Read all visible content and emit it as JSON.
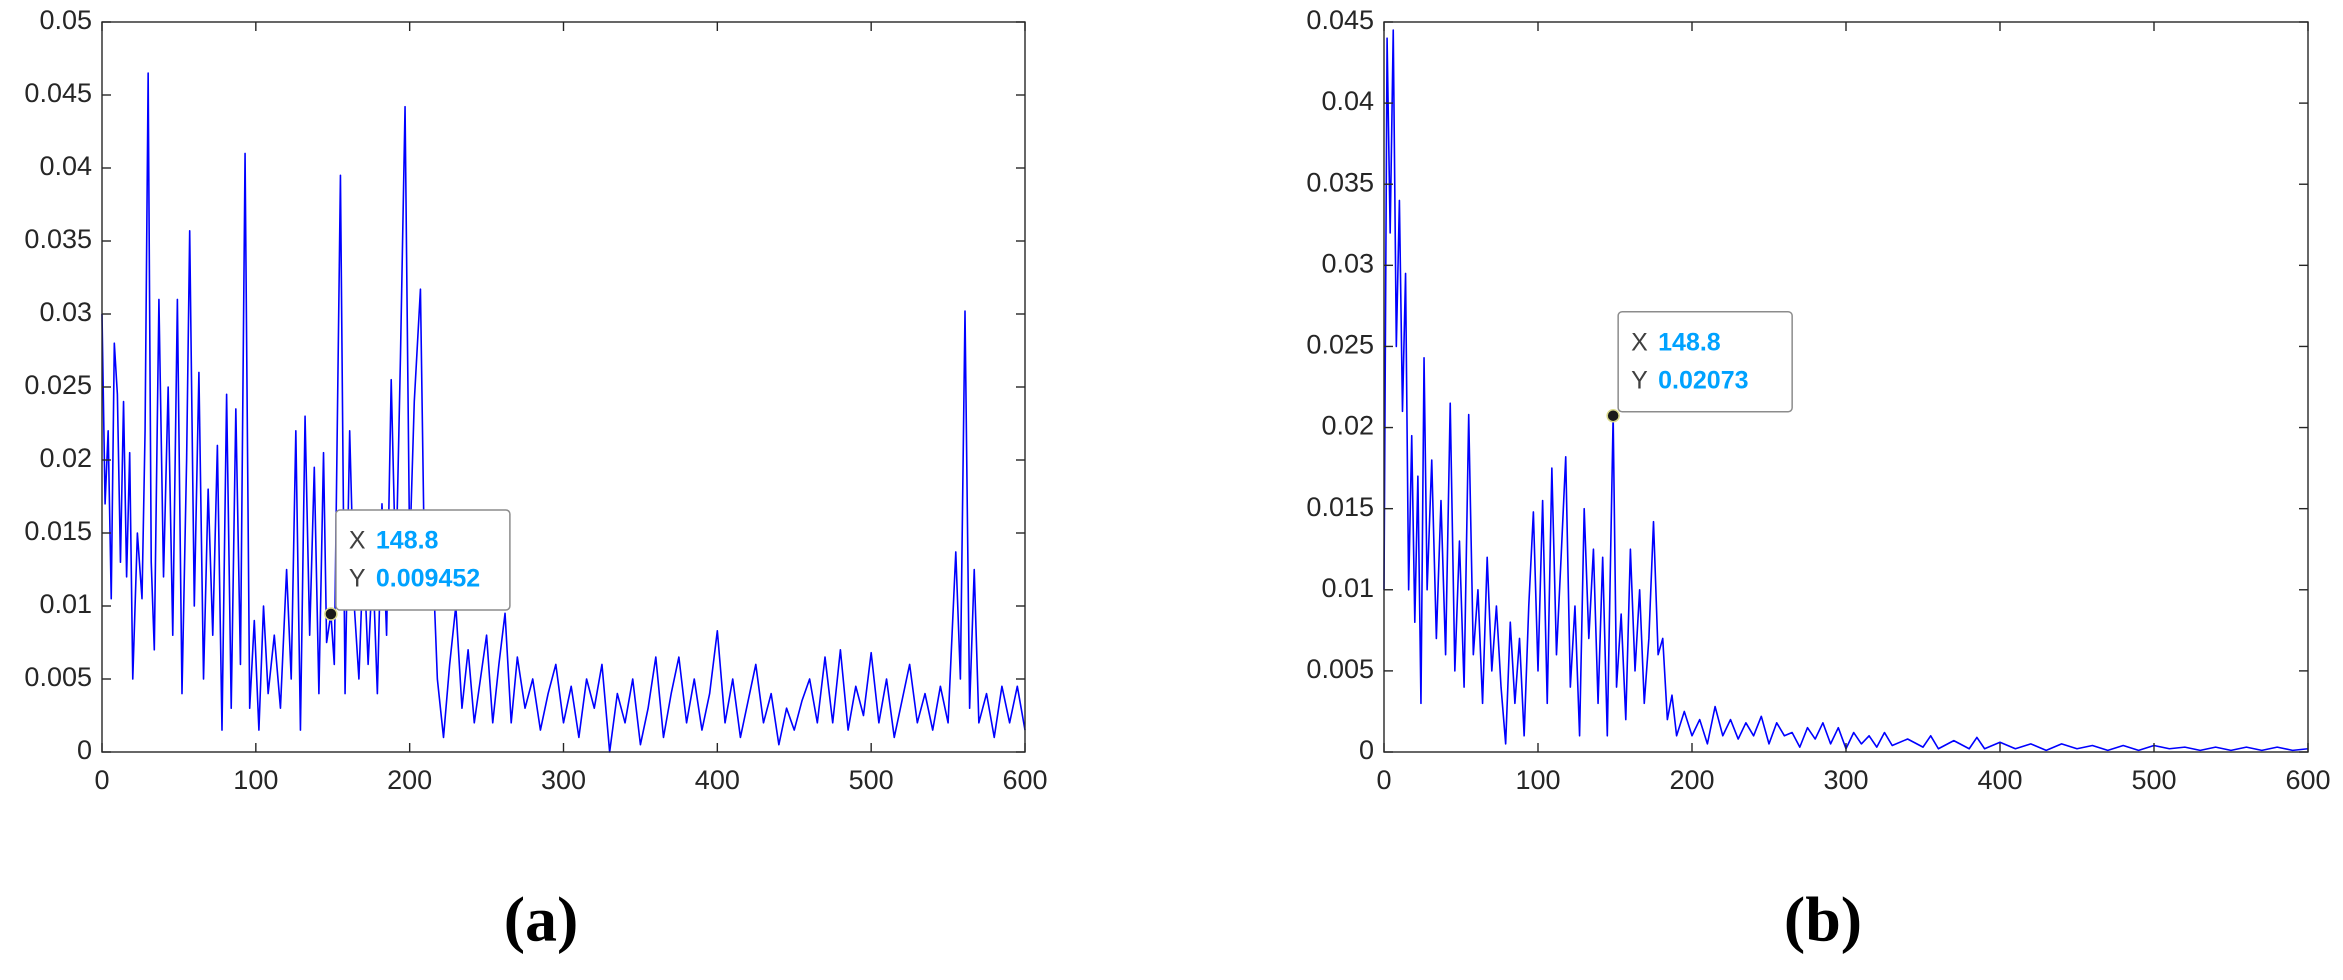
{
  "chart_data": [
    {
      "type": "line",
      "title": "(a)",
      "x": [
        0,
        2,
        4,
        6,
        8,
        10,
        12,
        14,
        16,
        18,
        20,
        23,
        26,
        28,
        30,
        32,
        34,
        37,
        40,
        43,
        46,
        49,
        52,
        55,
        57,
        60,
        63,
        66,
        69,
        72,
        75,
        78,
        81,
        84,
        87,
        90,
        93,
        96,
        99,
        102,
        105,
        108,
        112,
        116,
        120,
        123,
        126,
        129,
        132,
        135,
        138,
        141,
        144,
        146,
        148.8,
        151,
        155,
        158,
        161,
        164,
        167,
        170,
        173,
        176,
        179,
        182,
        185,
        188,
        191,
        194,
        197,
        200,
        203,
        207,
        210,
        214,
        218,
        222,
        226,
        230,
        234,
        238,
        242,
        246,
        250,
        254,
        258,
        262,
        266,
        270,
        275,
        280,
        285,
        290,
        295,
        300,
        305,
        310,
        315,
        320,
        325,
        330,
        335,
        340,
        345,
        350,
        355,
        360,
        365,
        370,
        375,
        380,
        385,
        390,
        395,
        400,
        405,
        410,
        415,
        420,
        425,
        430,
        435,
        440,
        445,
        450,
        455,
        460,
        465,
        470,
        475,
        480,
        485,
        490,
        495,
        500,
        505,
        510,
        515,
        520,
        525,
        530,
        535,
        540,
        545,
        550,
        555,
        558,
        561,
        564,
        567,
        570,
        575,
        580,
        585,
        590,
        595,
        600
      ],
      "series": [
        {
          "color": "#0000ff",
          "values": [
            0.03,
            0.017,
            0.022,
            0.0105,
            0.028,
            0.0245,
            0.013,
            0.024,
            0.012,
            0.0205,
            0.005,
            0.015,
            0.0105,
            0.022,
            0.0465,
            0.013,
            0.007,
            0.031,
            0.012,
            0.025,
            0.008,
            0.031,
            0.004,
            0.02,
            0.0357,
            0.01,
            0.026,
            0.005,
            0.018,
            0.008,
            0.021,
            0.0015,
            0.0245,
            0.003,
            0.0235,
            0.006,
            0.041,
            0.003,
            0.009,
            0.0015,
            0.01,
            0.004,
            0.008,
            0.003,
            0.0125,
            0.005,
            0.022,
            0.0015,
            0.023,
            0.008,
            0.0195,
            0.004,
            0.0205,
            0.0075,
            0.009452,
            0.006,
            0.0395,
            0.004,
            0.022,
            0.01,
            0.005,
            0.014,
            0.006,
            0.013,
            0.004,
            0.017,
            0.008,
            0.0255,
            0.012,
            0.027,
            0.0442,
            0.0135,
            0.024,
            0.0317,
            0.01,
            0.016,
            0.005,
            0.001,
            0.006,
            0.01,
            0.003,
            0.007,
            0.002,
            0.005,
            0.008,
            0.002,
            0.006,
            0.0095,
            0.002,
            0.0065,
            0.003,
            0.005,
            0.0015,
            0.004,
            0.006,
            0.002,
            0.0045,
            0.001,
            0.005,
            0.003,
            0.006,
            0,
            0.004,
            0.002,
            0.005,
            0.0005,
            0.003,
            0.0065,
            0.001,
            0.004,
            0.0065,
            0.002,
            0.005,
            0.0015,
            0.004,
            0.0083,
            0.002,
            0.005,
            0.001,
            0.0035,
            0.006,
            0.002,
            0.004,
            0.0005,
            0.003,
            0.0015,
            0.0035,
            0.005,
            0.002,
            0.0065,
            0.002,
            0.007,
            0.0015,
            0.0045,
            0.0025,
            0.0068,
            0.002,
            0.005,
            0.001,
            0.0035,
            0.006,
            0.002,
            0.004,
            0.0015,
            0.0045,
            0.002,
            0.0137,
            0.005,
            0.0302,
            0.003,
            0.0125,
            0.002,
            0.004,
            0.001,
            0.0045,
            0.002,
            0.0045,
            0.0015
          ]
        }
      ],
      "xlim": [
        0,
        600
      ],
      "xticks": [
        0,
        100,
        200,
        300,
        400,
        500,
        600
      ],
      "ylim": [
        0,
        0.05
      ],
      "yticks": [
        0,
        0.005,
        0.01,
        0.015,
        0.02,
        0.025,
        0.03,
        0.035,
        0.04,
        0.045,
        0.05
      ],
      "annotation": {
        "x_label": "X",
        "x": 148.8,
        "y_label": "Y",
        "y": 0.009452
      }
    },
    {
      "type": "line",
      "title": "(b)",
      "x": [
        0,
        2,
        4,
        6,
        8,
        10,
        12,
        14,
        16,
        18,
        20,
        22,
        24,
        26,
        28,
        31,
        34,
        37,
        40,
        43,
        46,
        49,
        52,
        55,
        58,
        61,
        64,
        67,
        70,
        73,
        76,
        79,
        82,
        85,
        88,
        91,
        94,
        97,
        100,
        103,
        106,
        109,
        112,
        115,
        118,
        121,
        124,
        127,
        130,
        133,
        136,
        139,
        142,
        145,
        148.8,
        151,
        154,
        157,
        160,
        163,
        166,
        169,
        172,
        175,
        178,
        181,
        184,
        187,
        190,
        195,
        200,
        205,
        210,
        215,
        220,
        225,
        230,
        235,
        240,
        245,
        250,
        255,
        260,
        265,
        270,
        275,
        280,
        285,
        290,
        295,
        300,
        305,
        310,
        315,
        320,
        325,
        330,
        340,
        350,
        355,
        360,
        370,
        380,
        385,
        390,
        400,
        410,
        420,
        430,
        440,
        450,
        460,
        470,
        480,
        490,
        500,
        510,
        520,
        530,
        540,
        550,
        560,
        570,
        580,
        590,
        600
      ],
      "series": [
        {
          "color": "#0000ff",
          "values": [
            0.01,
            0.044,
            0.032,
            0.0445,
            0.025,
            0.034,
            0.021,
            0.0295,
            0.01,
            0.0195,
            0.008,
            0.017,
            0.003,
            0.0243,
            0.01,
            0.018,
            0.007,
            0.0155,
            0.006,
            0.0215,
            0.005,
            0.013,
            0.004,
            0.0208,
            0.006,
            0.01,
            0.003,
            0.012,
            0.005,
            0.009,
            0.004,
            0.0005,
            0.008,
            0.003,
            0.007,
            0.001,
            0.009,
            0.0148,
            0.005,
            0.0155,
            0.003,
            0.0175,
            0.006,
            0.012,
            0.0182,
            0.004,
            0.009,
            0.001,
            0.015,
            0.007,
            0.0125,
            0.003,
            0.012,
            0.001,
            0.02073,
            0.004,
            0.0085,
            0.002,
            0.0125,
            0.005,
            0.01,
            0.003,
            0.007,
            0.0142,
            0.006,
            0.007,
            0.002,
            0.0035,
            0.001,
            0.0025,
            0.001,
            0.002,
            0.0005,
            0.0028,
            0.001,
            0.002,
            0.0008,
            0.0018,
            0.001,
            0.0022,
            0.0005,
            0.0018,
            0.001,
            0.0012,
            0.0003,
            0.0015,
            0.0008,
            0.0018,
            0.0005,
            0.0015,
            0.0002,
            0.0012,
            0.0005,
            0.001,
            0.0003,
            0.0012,
            0.0004,
            0.0008,
            0.0003,
            0.001,
            0.0002,
            0.0007,
            0.0002,
            0.0009,
            0.0002,
            0.0006,
            0.0002,
            0.0005,
            0.0001,
            0.0005,
            0.0002,
            0.0004,
            0.0001,
            0.0004,
            0.0001,
            0.0004,
            0.0002,
            0.0003,
            0.0001,
            0.0003,
            0.0001,
            0.0003,
            0.0001,
            0.0003,
            0.0001,
            0.0002
          ]
        }
      ],
      "xlim": [
        0,
        600
      ],
      "xticks": [
        0,
        100,
        200,
        300,
        400,
        500,
        600
      ],
      "ylim": [
        0,
        0.045
      ],
      "yticks": [
        0,
        0.005,
        0.01,
        0.015,
        0.02,
        0.025,
        0.03,
        0.035,
        0.04,
        0.045
      ],
      "annotation": {
        "x_label": "X",
        "x": 148.8,
        "y_label": "Y",
        "y": 0.02073
      }
    }
  ]
}
